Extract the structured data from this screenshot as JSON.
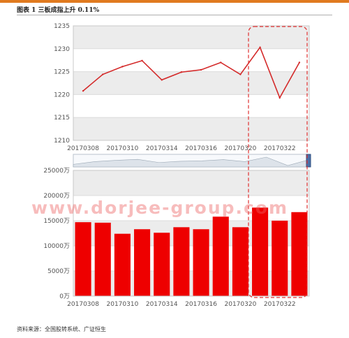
{
  "figure_title": "图表 1 三板成指上升 0.11%",
  "source_note": "资料来源：全国股转系统、广证恒生",
  "watermark": "www.dorjee-group.com",
  "colors": {
    "line": "#d42a2a",
    "bar": "#ee0000",
    "highlight": "#e03030",
    "band": "#ececec",
    "accent": "#e07a1f"
  },
  "chart_data": [
    {
      "type": "line",
      "title": "",
      "xlabel": "",
      "ylabel": "",
      "ylim": [
        1210,
        1235
      ],
      "yticks": [
        "1210",
        "1215",
        "1220",
        "1225",
        "1230",
        "1235"
      ],
      "xtick_labels": [
        "20170308",
        "20170310",
        "20170314",
        "20170316",
        "20170320",
        "20170322"
      ],
      "x": [
        "20170308",
        "20170309",
        "20170310",
        "20170313",
        "20170314",
        "20170315",
        "20170316",
        "20170317",
        "20170320",
        "20170321",
        "20170322",
        "20170323"
      ],
      "values": [
        1220.8,
        1224.4,
        1226.1,
        1227.4,
        1223.2,
        1224.9,
        1225.4,
        1227.0,
        1224.4,
        1230.3,
        1219.3,
        1227.0
      ],
      "grid": true
    },
    {
      "type": "bar",
      "title": "",
      "xlabel": "",
      "ylabel": "",
      "ylim": [
        0,
        25000
      ],
      "yticks": [
        "0万",
        "5000万",
        "10000万",
        "15000万",
        "20000万",
        "25000万"
      ],
      "xtick_labels": [
        "20170308",
        "20170310",
        "20170314",
        "20170316",
        "20170320",
        "20170322"
      ],
      "categories": [
        "20170308",
        "20170309",
        "20170310",
        "20170313",
        "20170314",
        "20170315",
        "20170316",
        "20170317",
        "20170320",
        "20170321",
        "20170322",
        "20170323"
      ],
      "values": [
        14700,
        14600,
        12400,
        13300,
        12600,
        13700,
        13300,
        15800,
        13700,
        17600,
        15000,
        16700
      ],
      "grid": true
    }
  ]
}
